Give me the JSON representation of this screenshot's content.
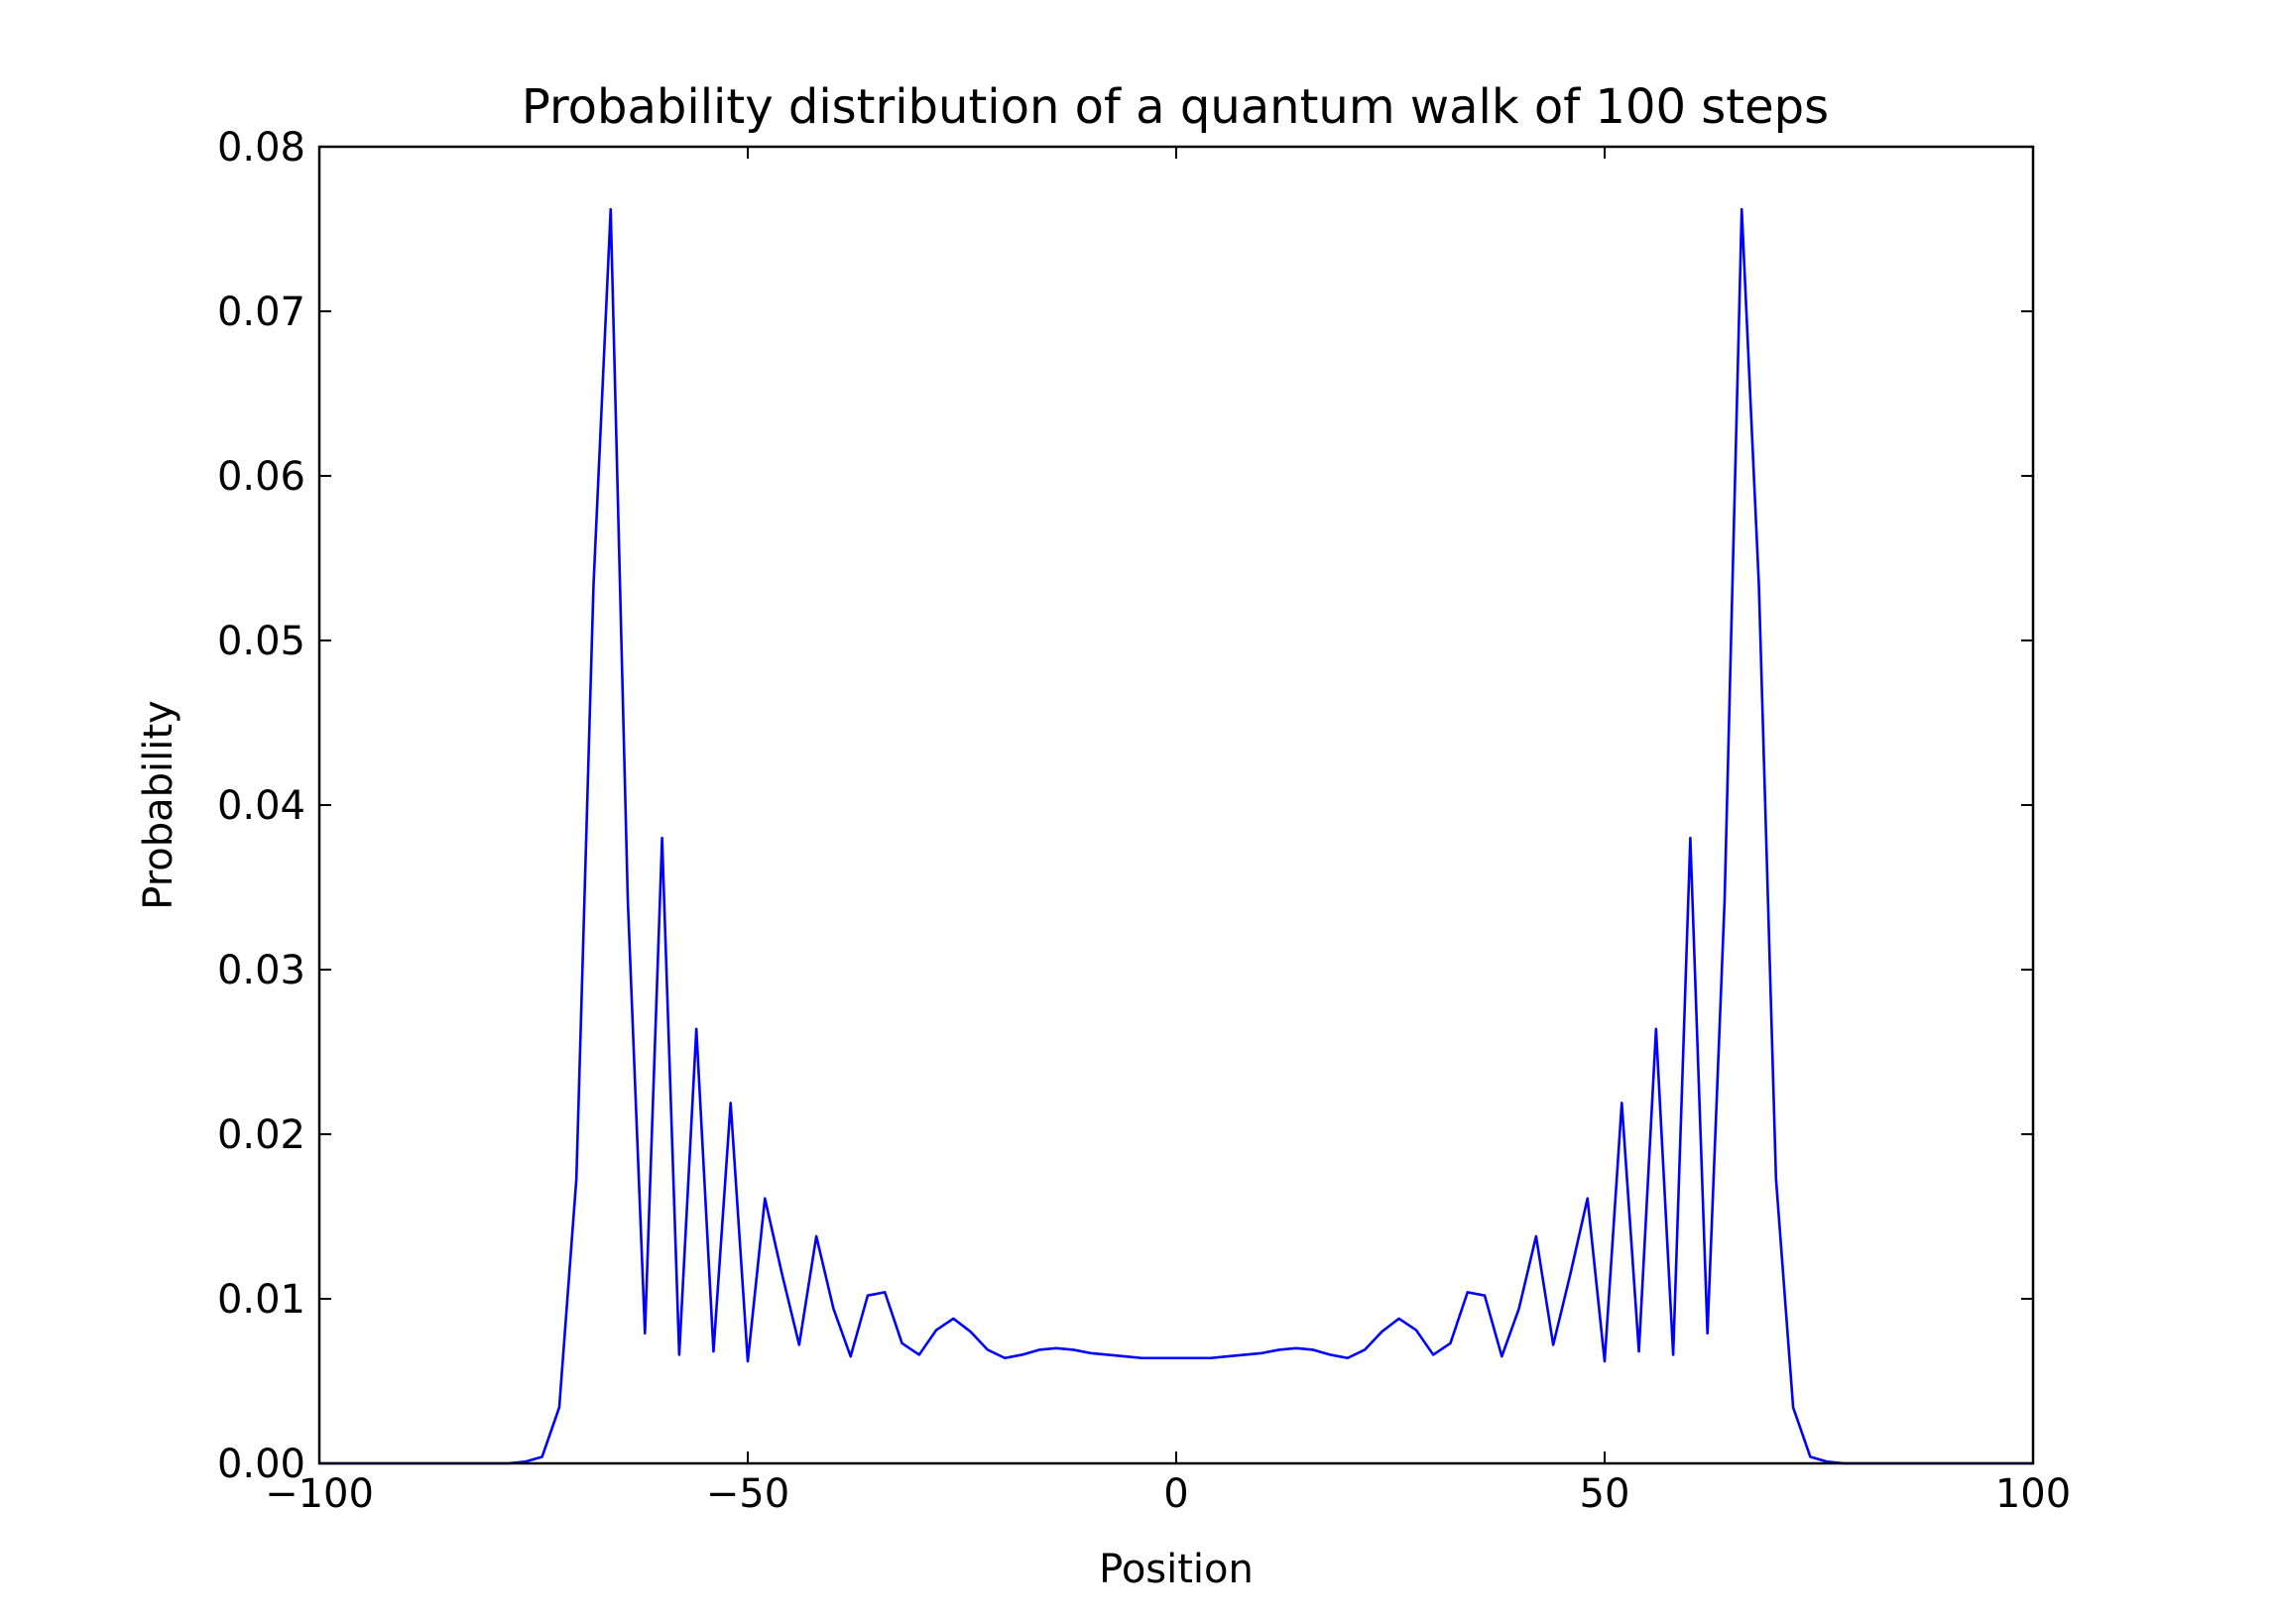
{
  "chart_data": {
    "type": "line",
    "title": "Probability distribution of a quantum walk of 100 steps",
    "xlabel": "Position",
    "ylabel": "Probability",
    "xlim": [
      -100,
      100
    ],
    "ylim": [
      0,
      0.08
    ],
    "xticks": [
      -100,
      -50,
      0,
      50,
      100
    ],
    "xtick_labels": [
      "−100",
      "−50",
      "0",
      "50",
      "100"
    ],
    "yticks": [
      0,
      0.01,
      0.02,
      0.03,
      0.04,
      0.05,
      0.06,
      0.07,
      0.08
    ],
    "ytick_labels": [
      "0.00",
      "0.01",
      "0.02",
      "0.03",
      "0.04",
      "0.05",
      "0.06",
      "0.07",
      "0.08"
    ],
    "grid": false,
    "line_color": "#0000ff",
    "series": [
      {
        "x": [
          -100,
          -98,
          -96,
          -94,
          -92,
          -90,
          -88,
          -86,
          -84,
          -82,
          -80,
          -78,
          -76,
          -74,
          -72,
          -70,
          -68,
          -66,
          -64,
          -62,
          -60,
          -58,
          -56,
          -54,
          -52,
          -50,
          -48,
          -46,
          -44,
          -42,
          -40,
          -38,
          -36,
          -34,
          -32,
          -30,
          -28,
          -26,
          -24,
          -22,
          -20,
          -18,
          -16,
          -14,
          -12,
          -10,
          -8,
          -6,
          -4,
          -2,
          0,
          2,
          4,
          6,
          8,
          10,
          12,
          14,
          16,
          18,
          20,
          22,
          24,
          26,
          28,
          30,
          32,
          34,
          36,
          38,
          40,
          42,
          44,
          46,
          48,
          50,
          52,
          54,
          56,
          58,
          60,
          62,
          64,
          66,
          68,
          70,
          72,
          74,
          76,
          78,
          80,
          82,
          84,
          86,
          88,
          90,
          92,
          94,
          96,
          98,
          100
        ],
        "y": [
          0,
          0,
          0,
          0,
          0,
          0,
          0,
          0,
          0,
          0,
          0,
          0,
          0.0001,
          0.0004,
          0.0034,
          0.0173,
          0.0534,
          0.0762,
          0.0342,
          0.0079,
          0.038,
          0.0066,
          0.0264,
          0.0068,
          0.0219,
          0.0062,
          0.0161,
          0.0115,
          0.0072,
          0.0138,
          0.0094,
          0.0065,
          0.0102,
          0.0104,
          0.0073,
          0.0066,
          0.0081,
          0.0088,
          0.008,
          0.0069,
          0.0064,
          0.0066,
          0.0069,
          0.007,
          0.0069,
          0.0067,
          0.0066,
          0.0065,
          0.0064,
          0.0064,
          0.0064,
          0.0064,
          0.0064,
          0.0065,
          0.0066,
          0.0067,
          0.0069,
          0.007,
          0.0069,
          0.0066,
          0.0064,
          0.0069,
          0.008,
          0.0088,
          0.0081,
          0.0066,
          0.0073,
          0.0104,
          0.0102,
          0.0065,
          0.0094,
          0.0138,
          0.0072,
          0.0115,
          0.0161,
          0.0062,
          0.0219,
          0.0068,
          0.0264,
          0.0066,
          0.038,
          0.0079,
          0.0342,
          0.0762,
          0.0534,
          0.0173,
          0.0034,
          0.0004,
          0.0001,
          0,
          0,
          0,
          0,
          0,
          0,
          0,
          0,
          0,
          0,
          0,
          0
        ]
      }
    ]
  }
}
